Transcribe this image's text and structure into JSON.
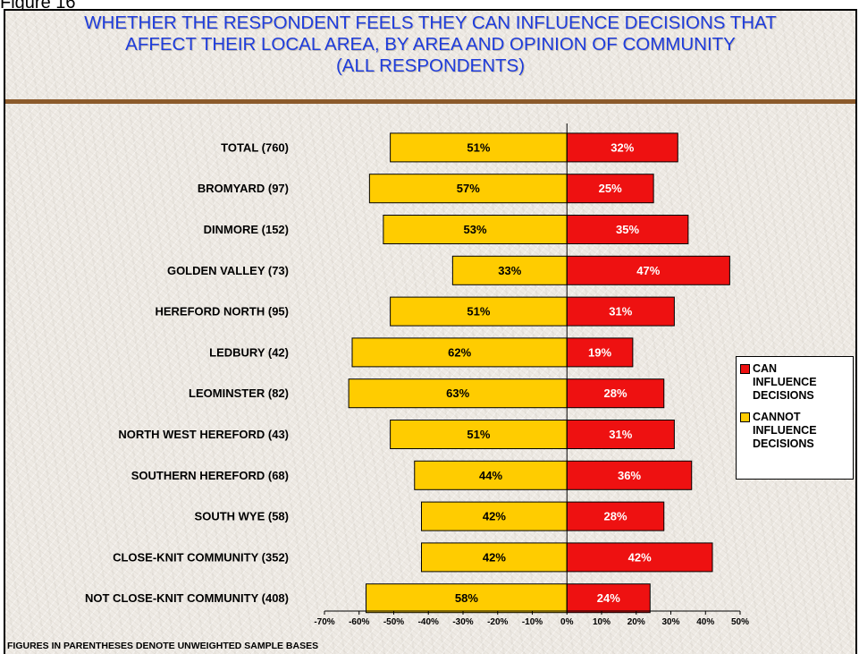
{
  "figure_label": "Figure 16",
  "footnote": "FIGURES IN PARENTHESES DENOTE UNWEIGHTED SAMPLE BASES",
  "colors": {
    "can": "#ee1111",
    "cannot": "#ffcc00",
    "title": "#1e3cdc",
    "frame_border": "#8b5a2b"
  },
  "chart_data": {
    "type": "bar",
    "orientation": "horizontal-diverging",
    "title_lines": [
      "WHETHER THE RESPONDENT FEELS THEY CAN INFLUENCE DECISIONS THAT",
      "AFFECT THEIR LOCAL AREA, BY AREA AND OPINION OF COMMUNITY",
      "(ALL RESPONDENTS)"
    ],
    "categories": [
      "TOTAL  (760)",
      "BROMYARD  (97)",
      "DINMORE  (152)",
      "GOLDEN VALLEY  (73)",
      "HEREFORD NORTH  (95)",
      "LEDBURY  (42)",
      "LEOMINSTER  (82)",
      "NORTH  WEST HEREFORD  (43)",
      "SOUTHERN HEREFORD  (68)",
      "SOUTH WYE  (58)",
      "CLOSE-KNIT COMMUNITY (352)",
      "NOT CLOSE-KNIT COMMUNITY (408)"
    ],
    "series": [
      {
        "name": "CANNOT INFLUENCE DECISIONS",
        "legend_lines": "CANNOT\nINFLUENCE\nDECISIONS",
        "color": "#ffcc00",
        "side": "left",
        "values": [
          51,
          57,
          53,
          33,
          51,
          62,
          63,
          51,
          44,
          42,
          42,
          58
        ],
        "labels": [
          "51%",
          "57%",
          "53%",
          "33%",
          "51%",
          "62%",
          "63%",
          "51%",
          "44%",
          "42%",
          "42%",
          "58%"
        ]
      },
      {
        "name": "CAN INFLUENCE DECISIONS",
        "legend_lines": "CAN\nINFLUENCE\nDECISIONS",
        "color": "#ee1111",
        "side": "right",
        "values": [
          32,
          25,
          35,
          47,
          31,
          19,
          28,
          31,
          36,
          28,
          42,
          24
        ],
        "labels": [
          "32%",
          "25%",
          "35%",
          "47%",
          "31%",
          "19%",
          "28%",
          "31%",
          "36%",
          "28%",
          "42%",
          "24%"
        ]
      }
    ],
    "xlim": [
      -70,
      50
    ],
    "xticks": [
      -70,
      -60,
      -50,
      -40,
      -30,
      -20,
      -10,
      0,
      10,
      20,
      30,
      40,
      50
    ],
    "xtick_labels": [
      "-70%",
      "-60%",
      "-50%",
      "-40%",
      "-30%",
      "-20%",
      "-10%",
      "0%",
      "10%",
      "20%",
      "30%",
      "40%",
      "50%"
    ],
    "grid": false,
    "legend_position": "right"
  }
}
